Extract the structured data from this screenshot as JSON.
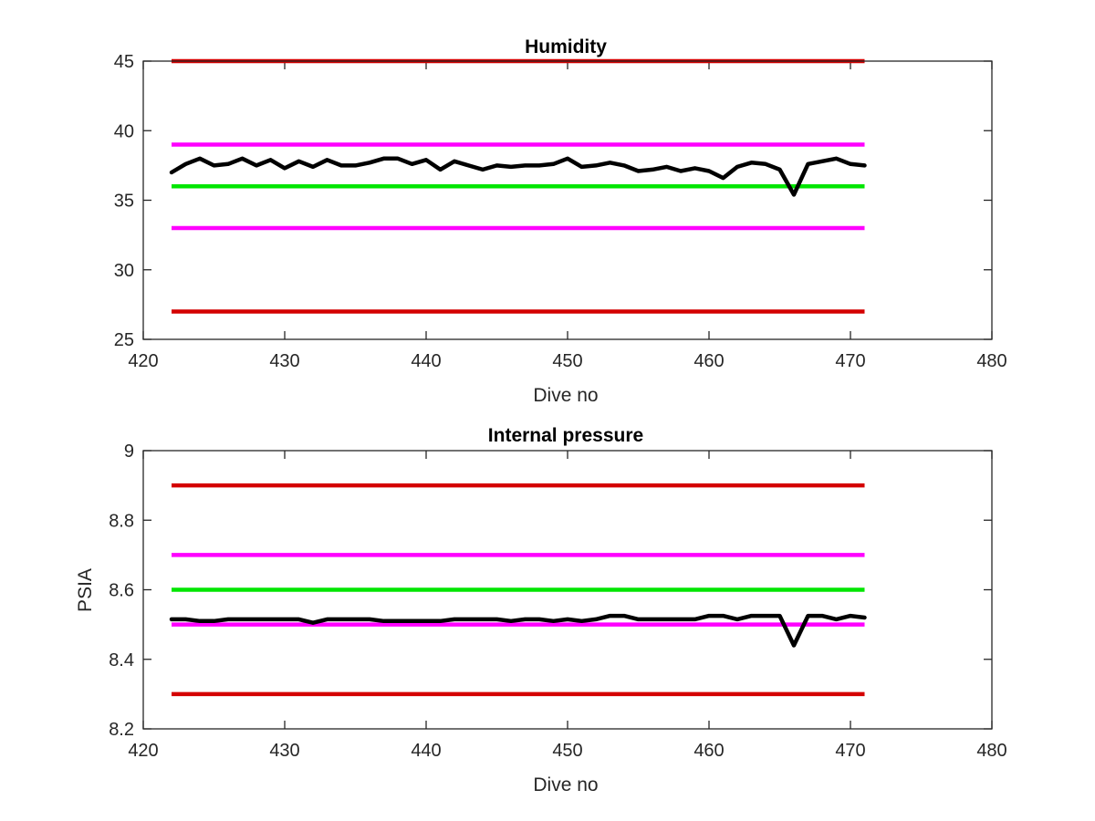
{
  "chart_data": [
    {
      "type": "line",
      "title": "Humidity",
      "xlabel": "Dive no",
      "ylabel": "",
      "xlim": [
        420,
        480
      ],
      "ylim": [
        25,
        45
      ],
      "xticks": [
        "420",
        "430",
        "440",
        "450",
        "460",
        "470",
        "480"
      ],
      "yticks": [
        "25",
        "30",
        "35",
        "40",
        "45"
      ],
      "grid": false,
      "reference_lines": [
        {
          "y": 45,
          "x_range": [
            422,
            471
          ],
          "color": "#d40000"
        },
        {
          "y": 39,
          "x_range": [
            422,
            471
          ],
          "color": "#ff00ff"
        },
        {
          "y": 36,
          "x_range": [
            422,
            471
          ],
          "color": "#00e600"
        },
        {
          "y": 33,
          "x_range": [
            422,
            471
          ],
          "color": "#ff00ff"
        },
        {
          "y": 27,
          "x_range": [
            422,
            471
          ],
          "color": "#d40000"
        }
      ],
      "series": [
        {
          "color": "#000000",
          "x": [
            422,
            423,
            424,
            425,
            426,
            427,
            428,
            429,
            430,
            431,
            432,
            433,
            434,
            435,
            436,
            437,
            438,
            439,
            440,
            441,
            442,
            443,
            444,
            445,
            446,
            447,
            448,
            449,
            450,
            451,
            452,
            453,
            454,
            455,
            456,
            457,
            458,
            459,
            460,
            461,
            462,
            463,
            464,
            465,
            466,
            467,
            468,
            469,
            470,
            471
          ],
          "y": [
            37.0,
            37.6,
            38.0,
            37.5,
            37.6,
            38.0,
            37.5,
            37.9,
            37.3,
            37.8,
            37.4,
            37.9,
            37.5,
            37.5,
            37.7,
            38.0,
            38.0,
            37.6,
            37.9,
            37.2,
            37.8,
            37.5,
            37.2,
            37.5,
            37.4,
            37.5,
            37.5,
            37.6,
            38.0,
            37.4,
            37.5,
            37.7,
            37.5,
            37.1,
            37.2,
            37.4,
            37.1,
            37.3,
            37.1,
            36.6,
            37.4,
            37.7,
            37.6,
            37.2,
            35.4,
            37.6,
            37.8,
            38.0,
            37.6,
            37.5
          ]
        }
      ]
    },
    {
      "type": "line",
      "title": "Internal pressure",
      "xlabel": "Dive no",
      "ylabel": "PSIA",
      "xlim": [
        420,
        480
      ],
      "ylim": [
        8.2,
        9
      ],
      "xticks": [
        "420",
        "430",
        "440",
        "450",
        "460",
        "470",
        "480"
      ],
      "yticks": [
        "8.2",
        "8.4",
        "8.6",
        "8.8",
        "9"
      ],
      "grid": false,
      "reference_lines": [
        {
          "y": 8.9,
          "x_range": [
            422,
            471
          ],
          "color": "#d40000"
        },
        {
          "y": 8.7,
          "x_range": [
            422,
            471
          ],
          "color": "#ff00ff"
        },
        {
          "y": 8.6,
          "x_range": [
            422,
            471
          ],
          "color": "#00e600"
        },
        {
          "y": 8.5,
          "x_range": [
            422,
            471
          ],
          "color": "#ff00ff"
        },
        {
          "y": 8.3,
          "x_range": [
            422,
            471
          ],
          "color": "#d40000"
        }
      ],
      "series": [
        {
          "color": "#000000",
          "x": [
            422,
            423,
            424,
            425,
            426,
            427,
            428,
            429,
            430,
            431,
            432,
            433,
            434,
            435,
            436,
            437,
            438,
            439,
            440,
            441,
            442,
            443,
            444,
            445,
            446,
            447,
            448,
            449,
            450,
            451,
            452,
            453,
            454,
            455,
            456,
            457,
            458,
            459,
            460,
            461,
            462,
            463,
            464,
            465,
            466,
            467,
            468,
            469,
            470,
            471
          ],
          "y": [
            8.515,
            8.515,
            8.51,
            8.51,
            8.515,
            8.515,
            8.515,
            8.515,
            8.515,
            8.515,
            8.505,
            8.515,
            8.515,
            8.515,
            8.515,
            8.51,
            8.51,
            8.51,
            8.51,
            8.51,
            8.515,
            8.515,
            8.515,
            8.515,
            8.51,
            8.515,
            8.515,
            8.51,
            8.515,
            8.51,
            8.515,
            8.525,
            8.525,
            8.515,
            8.515,
            8.515,
            8.515,
            8.515,
            8.525,
            8.525,
            8.515,
            8.525,
            8.525,
            8.525,
            8.44,
            8.525,
            8.525,
            8.515,
            8.525,
            8.52
          ]
        }
      ]
    }
  ]
}
